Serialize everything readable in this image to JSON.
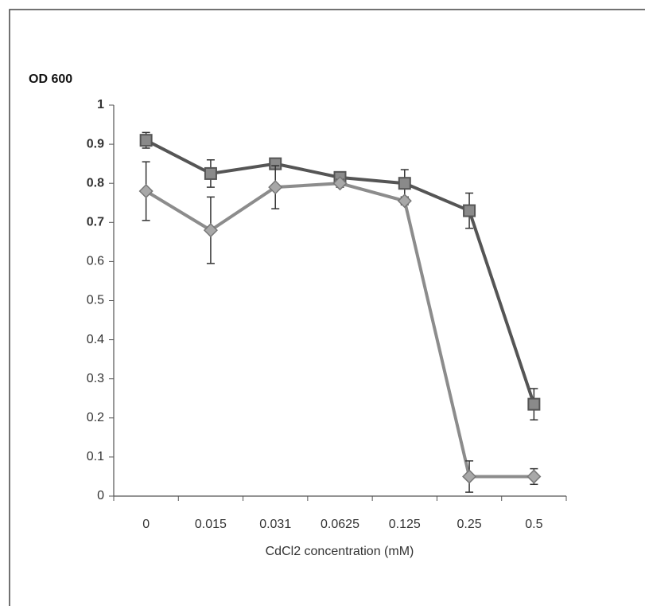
{
  "chart_data": {
    "type": "line",
    "y_label": "OD 600",
    "x_label": "CdCl2 concentration  (mM)",
    "categories": [
      "0",
      "0.015",
      "0.031",
      "0.0625",
      "0.125",
      "0.25",
      "0.5"
    ],
    "series": [
      {
        "color": "#555555",
        "marker": "square",
        "values": [
          0.91,
          0.825,
          0.85,
          0.815,
          0.8,
          0.73,
          0.235
        ],
        "errors": [
          0.02,
          0.035,
          0.01,
          0.01,
          0.035,
          0.045,
          0.04
        ]
      },
      {
        "color": "#8c8c8c",
        "marker": "diamond",
        "values": [
          0.78,
          0.68,
          0.79,
          0.8,
          0.755,
          0.05,
          0.05
        ],
        "errors": [
          0.075,
          0.085,
          0.055,
          0.01,
          0.01,
          0.04,
          0.02
        ]
      }
    ],
    "ylim": [
      0,
      1
    ],
    "yticks": [
      0,
      0.1,
      0.2,
      0.3,
      0.4,
      0.5,
      0.6,
      0.7,
      0.8,
      0.9,
      1
    ],
    "grid": false
  }
}
